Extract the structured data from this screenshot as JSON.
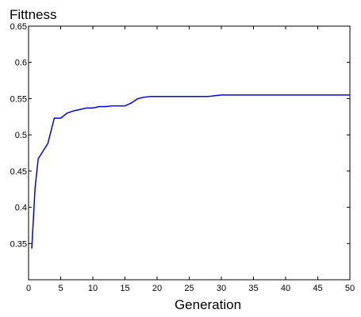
{
  "chart_data": {
    "type": "line",
    "title": "",
    "ylabel": "Fittness",
    "xlabel": "Generation",
    "xlim": [
      0,
      50
    ],
    "ylim": [
      0.3,
      0.65
    ],
    "xticks": [
      "0",
      "5",
      "10",
      "15",
      "20",
      "25",
      "30",
      "35",
      "40",
      "45",
      "50"
    ],
    "yticks": [
      "0.35",
      "0.4",
      "0.45",
      "0.5",
      "0.55",
      "0.6",
      "0.65"
    ],
    "grid": false,
    "series": [
      {
        "color": "#0000ff",
        "x": [
          0.5,
          1,
          1.5,
          2,
          3,
          4,
          5,
          6,
          7,
          8,
          9,
          10,
          11,
          12,
          13,
          14,
          15,
          16,
          17,
          18,
          19,
          20,
          21,
          22,
          23,
          24,
          25,
          26,
          27,
          28,
          29,
          30,
          35,
          40,
          45,
          50
        ],
        "y": [
          0.343,
          0.425,
          0.467,
          0.474,
          0.488,
          0.523,
          0.523,
          0.53,
          0.533,
          0.535,
          0.537,
          0.537,
          0.539,
          0.539,
          0.54,
          0.54,
          0.54,
          0.544,
          0.55,
          0.552,
          0.553,
          0.553,
          0.553,
          0.553,
          0.553,
          0.553,
          0.553,
          0.553,
          0.553,
          0.553,
          0.554,
          0.555,
          0.555,
          0.555,
          0.555,
          0.555
        ]
      }
    ]
  }
}
